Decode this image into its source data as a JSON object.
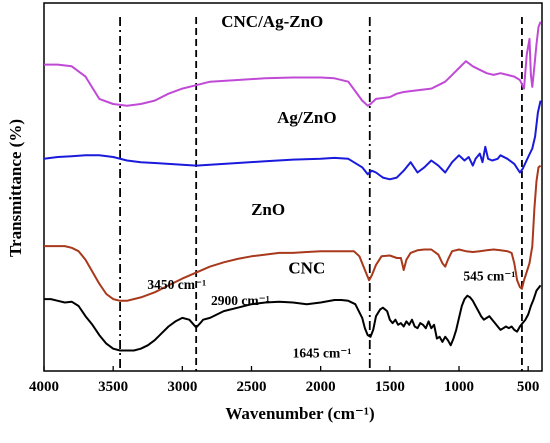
{
  "chart_data": {
    "type": "line",
    "xlabel": "Wavenumber (cm⁻¹)",
    "ylabel": "Transmittance (%)",
    "xlim": [
      4000,
      400
    ],
    "x_reversed": true,
    "x_ticks": [
      4000,
      3500,
      3000,
      2500,
      2000,
      1500,
      1000,
      500
    ],
    "y_ticks_shown": false,
    "grid": false,
    "y_unit_note": "arbitrary (stacked, offset spectra)",
    "series": [
      {
        "name": "CNC/Ag-ZnO",
        "color": "#c04ad6",
        "points": [
          [
            4000,
            14.6
          ],
          [
            3900,
            14.6
          ],
          [
            3800,
            14.5
          ],
          [
            3700,
            13.9
          ],
          [
            3600,
            12.6
          ],
          [
            3500,
            12.3
          ],
          [
            3400,
            12.2
          ],
          [
            3300,
            12.3
          ],
          [
            3200,
            12.5
          ],
          [
            3100,
            12.9
          ],
          [
            3000,
            13.2
          ],
          [
            2900,
            13.4
          ],
          [
            2800,
            13.6
          ],
          [
            2600,
            13.7
          ],
          [
            2400,
            13.8
          ],
          [
            2200,
            13.85
          ],
          [
            2000,
            13.85
          ],
          [
            1900,
            13.8
          ],
          [
            1800,
            13.6
          ],
          [
            1700,
            12.5
          ],
          [
            1660,
            12.2
          ],
          [
            1640,
            12.3
          ],
          [
            1600,
            12.6
          ],
          [
            1500,
            12.7
          ],
          [
            1450,
            12.9
          ],
          [
            1400,
            13.0
          ],
          [
            1300,
            13.1
          ],
          [
            1200,
            13.2
          ],
          [
            1150,
            13.4
          ],
          [
            1100,
            13.6
          ],
          [
            1050,
            14.0
          ],
          [
            1000,
            14.4
          ],
          [
            950,
            14.8
          ],
          [
            900,
            14.5
          ],
          [
            850,
            14.3
          ],
          [
            800,
            14.1
          ],
          [
            750,
            14.0
          ],
          [
            700,
            14.1
          ],
          [
            650,
            14.0
          ],
          [
            600,
            13.9
          ],
          [
            560,
            13.7
          ],
          [
            530,
            13.2
          ],
          [
            510,
            15.2
          ],
          [
            490,
            16.1
          ],
          [
            480,
            14.0
          ],
          [
            470,
            13.3
          ],
          [
            455,
            14.5
          ],
          [
            440,
            15.8
          ],
          [
            425,
            16.8
          ],
          [
            410,
            17.1
          ]
        ]
      },
      {
        "name": "Ag/ZnO",
        "color": "#1a1adc",
        "points": [
          [
            4000,
            9.1
          ],
          [
            3900,
            9.2
          ],
          [
            3800,
            9.25
          ],
          [
            3700,
            9.3
          ],
          [
            3600,
            9.3
          ],
          [
            3500,
            9.2
          ],
          [
            3400,
            9.0
          ],
          [
            3300,
            8.9
          ],
          [
            3200,
            8.85
          ],
          [
            3100,
            8.8
          ],
          [
            3000,
            8.75
          ],
          [
            2900,
            8.7
          ],
          [
            2800,
            8.75
          ],
          [
            2600,
            8.85
          ],
          [
            2400,
            8.95
          ],
          [
            2200,
            9.05
          ],
          [
            2000,
            9.1
          ],
          [
            1900,
            9.15
          ],
          [
            1800,
            9.1
          ],
          [
            1700,
            8.6
          ],
          [
            1660,
            8.2
          ],
          [
            1630,
            8.4
          ],
          [
            1600,
            8.3
          ],
          [
            1550,
            8.0
          ],
          [
            1500,
            7.9
          ],
          [
            1450,
            8.0
          ],
          [
            1400,
            8.4
          ],
          [
            1350,
            8.9
          ],
          [
            1300,
            8.3
          ],
          [
            1250,
            8.6
          ],
          [
            1200,
            9.0
          ],
          [
            1150,
            8.7
          ],
          [
            1100,
            8.3
          ],
          [
            1050,
            8.9
          ],
          [
            1000,
            9.3
          ],
          [
            960,
            9.0
          ],
          [
            930,
            9.2
          ],
          [
            900,
            8.7
          ],
          [
            880,
            9.1
          ],
          [
            850,
            9.4
          ],
          [
            830,
            8.9
          ],
          [
            810,
            9.8
          ],
          [
            790,
            9.1
          ],
          [
            760,
            9.0
          ],
          [
            720,
            9.1
          ],
          [
            700,
            9.3
          ],
          [
            650,
            9.1
          ],
          [
            600,
            8.8
          ],
          [
            560,
            8.3
          ],
          [
            540,
            8.5
          ],
          [
            500,
            9.2
          ],
          [
            470,
            9.7
          ],
          [
            450,
            10.4
          ],
          [
            430,
            11.8
          ],
          [
            410,
            12.5
          ]
        ]
      },
      {
        "name": "ZnO",
        "color": "#a8391c",
        "points": [
          [
            4000,
            4.0
          ],
          [
            3850,
            4.0
          ],
          [
            3800,
            3.9
          ],
          [
            3750,
            3.7
          ],
          [
            3700,
            3.2
          ],
          [
            3650,
            2.5
          ],
          [
            3600,
            1.8
          ],
          [
            3550,
            1.2
          ],
          [
            3500,
            0.9
          ],
          [
            3450,
            0.8
          ],
          [
            3400,
            0.8
          ],
          [
            3300,
            1.0
          ],
          [
            3200,
            1.3
          ],
          [
            3100,
            1.7
          ],
          [
            3000,
            2.1
          ],
          [
            2900,
            2.45
          ],
          [
            2800,
            2.8
          ],
          [
            2700,
            3.05
          ],
          [
            2600,
            3.25
          ],
          [
            2500,
            3.4
          ],
          [
            2400,
            3.5
          ],
          [
            2300,
            3.6
          ],
          [
            2200,
            3.6
          ],
          [
            2100,
            3.65
          ],
          [
            2000,
            3.7
          ],
          [
            1900,
            3.7
          ],
          [
            1800,
            3.7
          ],
          [
            1760,
            3.7
          ],
          [
            1720,
            3.4
          ],
          [
            1680,
            2.6
          ],
          [
            1650,
            2.0
          ],
          [
            1630,
            2.3
          ],
          [
            1600,
            2.9
          ],
          [
            1560,
            3.4
          ],
          [
            1500,
            3.45
          ],
          [
            1450,
            3.3
          ],
          [
            1420,
            3.3
          ],
          [
            1400,
            2.6
          ],
          [
            1380,
            3.2
          ],
          [
            1350,
            3.6
          ],
          [
            1300,
            3.75
          ],
          [
            1250,
            3.8
          ],
          [
            1200,
            3.8
          ],
          [
            1150,
            3.5
          ],
          [
            1120,
            3.0
          ],
          [
            1100,
            2.8
          ],
          [
            1080,
            3.2
          ],
          [
            1050,
            3.7
          ],
          [
            1000,
            3.8
          ],
          [
            950,
            3.7
          ],
          [
            900,
            3.65
          ],
          [
            850,
            3.7
          ],
          [
            800,
            3.75
          ],
          [
            750,
            3.8
          ],
          [
            700,
            3.75
          ],
          [
            650,
            3.7
          ],
          [
            620,
            3.6
          ],
          [
            600,
            3.0
          ],
          [
            580,
            2.0
          ],
          [
            560,
            1.6
          ],
          [
            545,
            1.5
          ],
          [
            530,
            2.0
          ],
          [
            510,
            2.5
          ],
          [
            490,
            3.0
          ],
          [
            470,
            4.0
          ],
          [
            455,
            6.2
          ],
          [
            440,
            7.8
          ],
          [
            425,
            8.6
          ],
          [
            410,
            8.7
          ]
        ]
      },
      {
        "name": "CNC",
        "color": "#000000",
        "points": [
          [
            4000,
            0.9
          ],
          [
            3950,
            0.9
          ],
          [
            3900,
            0.8
          ],
          [
            3850,
            0.7
          ],
          [
            3800,
            0.75
          ],
          [
            3750,
            0.5
          ],
          [
            3700,
            -0.1
          ],
          [
            3650,
            -0.6
          ],
          [
            3600,
            -1.2
          ],
          [
            3550,
            -1.7
          ],
          [
            3500,
            -2.0
          ],
          [
            3450,
            -2.1
          ],
          [
            3400,
            -2.1
          ],
          [
            3350,
            -2.1
          ],
          [
            3300,
            -2.0
          ],
          [
            3250,
            -1.8
          ],
          [
            3200,
            -1.5
          ],
          [
            3150,
            -1.1
          ],
          [
            3100,
            -0.7
          ],
          [
            3050,
            -0.4
          ],
          [
            3000,
            -0.2
          ],
          [
            2950,
            -0.3
          ],
          [
            2900,
            -0.75
          ],
          [
            2870,
            -0.5
          ],
          [
            2850,
            -0.3
          ],
          [
            2800,
            -0.2
          ],
          [
            2750,
            0.0
          ],
          [
            2700,
            0.2
          ],
          [
            2600,
            0.4
          ],
          [
            2500,
            0.6
          ],
          [
            2400,
            0.7
          ],
          [
            2300,
            0.75
          ],
          [
            2200,
            0.7
          ],
          [
            2100,
            0.6
          ],
          [
            2000,
            0.7
          ],
          [
            1900,
            0.85
          ],
          [
            1850,
            0.85
          ],
          [
            1800,
            0.8
          ],
          [
            1750,
            0.6
          ],
          [
            1700,
            -0.2
          ],
          [
            1680,
            -0.8
          ],
          [
            1660,
            -1.2
          ],
          [
            1640,
            -1.3
          ],
          [
            1620,
            -0.9
          ],
          [
            1600,
            -0.1
          ],
          [
            1570,
            0.3
          ],
          [
            1550,
            0.4
          ],
          [
            1520,
            0.2
          ],
          [
            1500,
            -0.3
          ],
          [
            1480,
            -0.5
          ],
          [
            1460,
            -0.3
          ],
          [
            1440,
            -0.6
          ],
          [
            1420,
            -0.5
          ],
          [
            1400,
            -0.7
          ],
          [
            1380,
            -0.4
          ],
          [
            1360,
            -0.6
          ],
          [
            1340,
            -0.3
          ],
          [
            1320,
            -0.7
          ],
          [
            1300,
            -0.8
          ],
          [
            1280,
            -0.5
          ],
          [
            1260,
            -0.6
          ],
          [
            1240,
            -0.8
          ],
          [
            1220,
            -0.4
          ],
          [
            1200,
            -0.8
          ],
          [
            1180,
            -0.6
          ],
          [
            1160,
            -1.4
          ],
          [
            1140,
            -1.3
          ],
          [
            1120,
            -1.6
          ],
          [
            1100,
            -1.3
          ],
          [
            1080,
            -1.5
          ],
          [
            1060,
            -1.8
          ],
          [
            1040,
            -1.4
          ],
          [
            1020,
            -0.9
          ],
          [
            1000,
            -0.2
          ],
          [
            980,
            0.5
          ],
          [
            960,
            0.9
          ],
          [
            940,
            1.1
          ],
          [
            920,
            1.0
          ],
          [
            900,
            0.8
          ],
          [
            880,
            0.5
          ],
          [
            860,
            0.2
          ],
          [
            840,
            -0.1
          ],
          [
            820,
            -0.3
          ],
          [
            800,
            -0.2
          ],
          [
            780,
            -0.1
          ],
          [
            760,
            -0.3
          ],
          [
            740,
            -0.5
          ],
          [
            720,
            -0.7
          ],
          [
            700,
            -0.9
          ],
          [
            680,
            -0.8
          ],
          [
            660,
            -0.7
          ],
          [
            640,
            -0.8
          ],
          [
            620,
            -0.7
          ],
          [
            600,
            -0.9
          ],
          [
            580,
            -1.0
          ],
          [
            560,
            -0.7
          ],
          [
            540,
            -0.5
          ],
          [
            520,
            -0.3
          ],
          [
            500,
            0.0
          ],
          [
            480,
            0.5
          ],
          [
            460,
            0.9
          ],
          [
            440,
            1.4
          ],
          [
            420,
            1.6
          ],
          [
            410,
            1.7
          ]
        ]
      }
    ],
    "series_labels": [
      {
        "text": "CNC/Ag-ZnO",
        "x": 2350,
        "y": 16.8
      },
      {
        "text": "Ag/ZnO",
        "x": 2100,
        "y": 11.2
      },
      {
        "text": "ZnO",
        "x": 2380,
        "y": 5.8
      },
      {
        "text": "CNC",
        "x": 2100,
        "y": 2.4
      }
    ],
    "reference_lines": [
      {
        "x": 3450,
        "style": "dash-dot",
        "label": "3450 cm⁻¹",
        "label_x": 3040,
        "label_y": 1.5
      },
      {
        "x": 2900,
        "style": "dashed",
        "label": "2900 cm⁻¹",
        "label_x": 2580,
        "label_y": 0.55
      },
      {
        "x": 1645,
        "style": "dash-dot",
        "label": "1645 cm⁻¹",
        "label_x": 1990,
        "label_y": -2.5
      },
      {
        "x": 545,
        "style": "dashed",
        "label": "545 cm⁻¹",
        "label_x": 780,
        "label_y": 2.0
      }
    ]
  }
}
